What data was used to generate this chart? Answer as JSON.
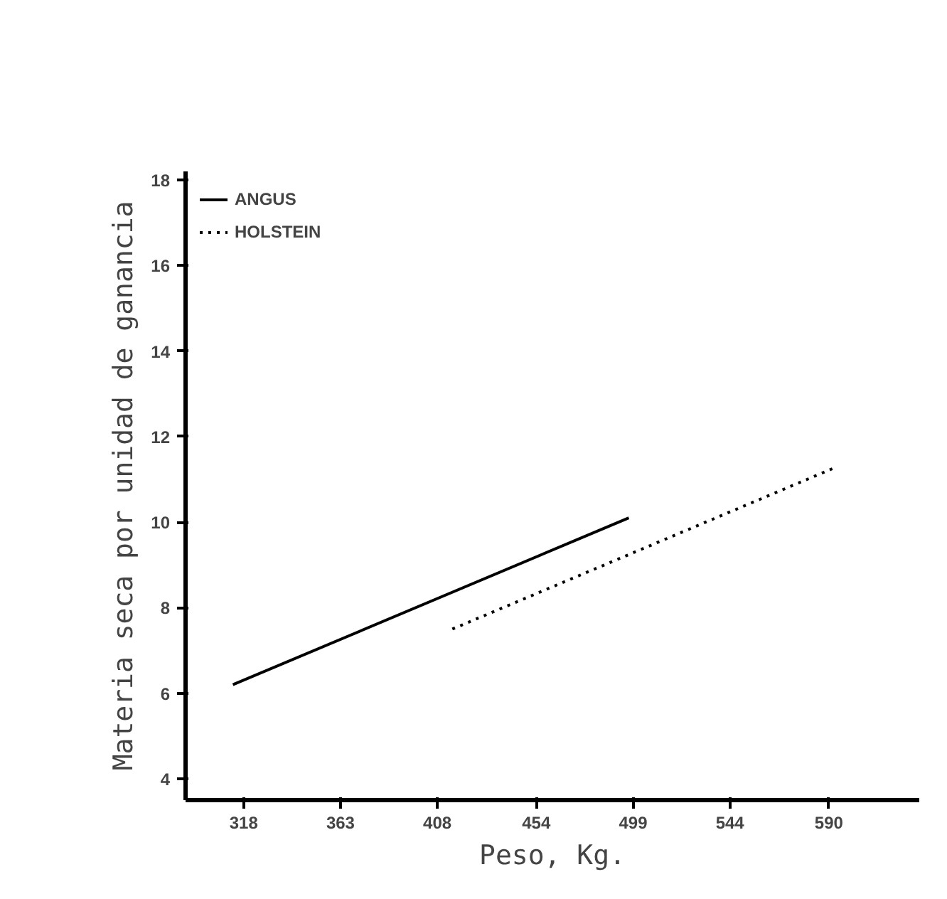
{
  "chart_data": {
    "type": "line",
    "xlabel": "Peso, Kg.",
    "ylabel": "Materia seca por unidad de ganancia",
    "xlim": [
      291,
      632
    ],
    "ylim": [
      3.5,
      18.2
    ],
    "xticks": [
      318,
      363,
      408,
      454,
      499,
      544,
      590
    ],
    "yticks": [
      4,
      6,
      8,
      10,
      12,
      14,
      16,
      18
    ],
    "series": [
      {
        "name": "ANGUS",
        "color": "#000000",
        "line_style": "solid",
        "x": [
          313,
          497
        ],
        "values": [
          6.2,
          10.1
        ]
      },
      {
        "name": "HOLSTEIN",
        "color": "#000000",
        "line_style": "dotted",
        "x": [
          415,
          594
        ],
        "values": [
          7.5,
          11.3
        ]
      }
    ],
    "legend": "top left",
    "grid": false
  }
}
